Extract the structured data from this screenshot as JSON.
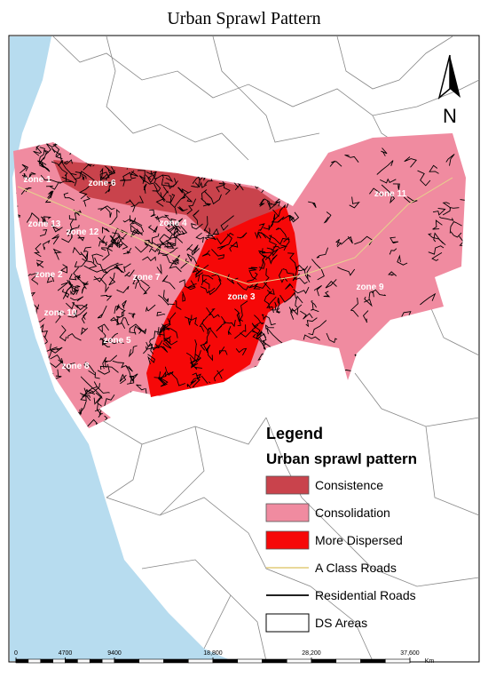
{
  "title": "Urban Sprawl Pattern",
  "north_label": "N",
  "zones": [
    "zone 1",
    "zone 6",
    "zone 13",
    "zone 12",
    "zone 4",
    "zone 2",
    "zone 7",
    "zone 3",
    "zone 10",
    "zone 5",
    "zone 8",
    "zone 11",
    "zone 9"
  ],
  "legend": {
    "title": "Legend",
    "subtitle": "Urban sprawl pattern",
    "items": [
      {
        "label": "Consistence",
        "color": "#c9434c",
        "symbol": "fill"
      },
      {
        "label": "Consolidation",
        "color": "#f08ba0",
        "symbol": "fill"
      },
      {
        "label": "More Dispersed",
        "color": "#f60808",
        "symbol": "fill"
      },
      {
        "label": "A Class Roads",
        "color": "#e6d38c",
        "symbol": "line"
      },
      {
        "label": "Residential Roads",
        "color": "#000000",
        "symbol": "line"
      },
      {
        "label": "DS Areas",
        "color": "#ffffff",
        "symbol": "box"
      }
    ]
  },
  "scale_bar": {
    "ticks": [
      0,
      4700,
      9400,
      {
        "value": 18800,
        "label": "18,800"
      },
      {
        "value": 28200,
        "label": "28,200"
      },
      {
        "value": 37600,
        "label": "37,600"
      }
    ],
    "unit": "Km"
  }
}
